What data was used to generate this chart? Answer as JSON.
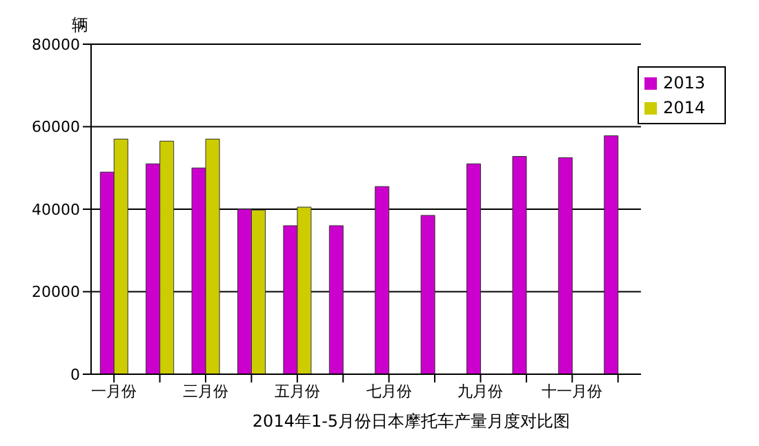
{
  "chart_data": {
    "type": "bar",
    "title": "2014年1-5月份日本摩托车产量月度对比图",
    "ylabel": "辆",
    "categories": [
      "一月份",
      null,
      "三月份",
      null,
      "五月份",
      null,
      "七月份",
      null,
      "九月份",
      null,
      "十一月份",
      null
    ],
    "series": [
      {
        "name": "2013",
        "color": "#cc00cc",
        "values": [
          49000,
          51000,
          50000,
          40000,
          36000,
          36000,
          45500,
          38500,
          51000,
          52800,
          52500,
          57800
        ]
      },
      {
        "name": "2014",
        "color": "#cccc00",
        "values": [
          57000,
          56500,
          57000,
          39800,
          40500,
          null,
          null,
          null,
          null,
          null,
          null,
          null
        ]
      }
    ],
    "ylim": [
      0,
      80000
    ],
    "yticks": [
      0,
      20000,
      40000,
      60000,
      80000
    ],
    "grid": "y",
    "legend": "top right"
  }
}
